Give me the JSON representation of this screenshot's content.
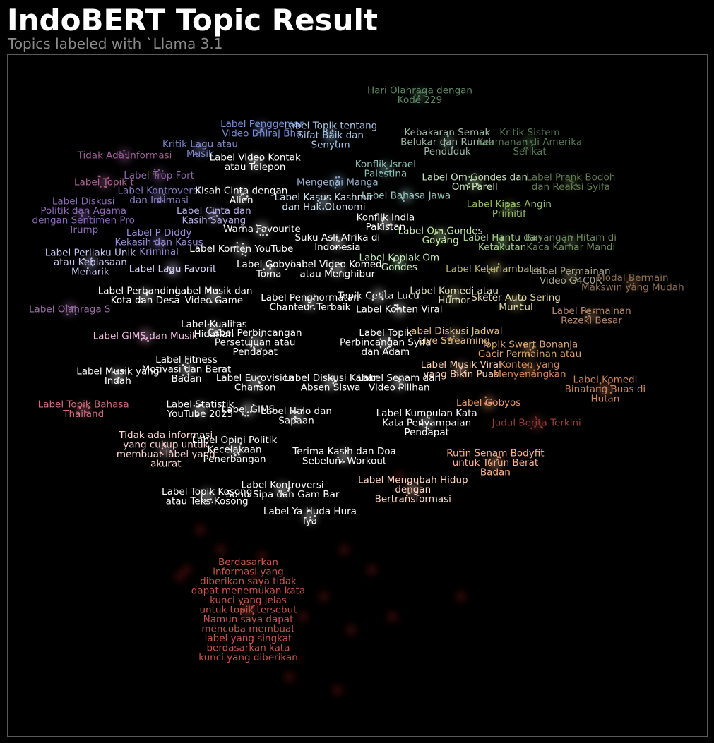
{
  "title": "IndoBERT Topic Result",
  "subtitle": "Topics labeled with `Llama 3.1",
  "chart_data": {
    "type": "scatter",
    "title": "IndoBERT Topic Result",
    "subtitle": "Topics labeled with `Llama 3.1",
    "xlabel": "",
    "ylabel": "",
    "axes_visible": false,
    "grid": false,
    "background": "#000000",
    "xlim": [
      0,
      100
    ],
    "ylim": [
      0,
      100
    ],
    "topics": [
      {
        "label": "Label Penggemar Video Dhiraj Bha",
        "x": 36,
        "y": 90,
        "color": "#7b8fd6"
      },
      {
        "label": "Label Topik tentang Sifat Baik dan Senyum",
        "x": 46,
        "y": 89,
        "color": "#a8c8e8"
      },
      {
        "label": "Hari Olahraga dengan Kode 229",
        "x": 59,
        "y": 95,
        "color": "#5e8a66"
      },
      {
        "label": "Kritik Lagu atau Musik",
        "x": 27,
        "y": 87,
        "color": "#7f86c9"
      },
      {
        "label": "Tidak Ada Informasi",
        "x": 16,
        "y": 86,
        "color": "#9d5f9b"
      },
      {
        "label": "Label Video Kontak atau Telepon",
        "x": 35,
        "y": 85,
        "color": "#ffffff"
      },
      {
        "label": "Kebakaran Semak Belukar dan Rumah Penduduk",
        "x": 63,
        "y": 88,
        "color": "#9cb8a8"
      },
      {
        "label": "Kritik Sistem Keamanan di Amerika Serikat",
        "x": 75,
        "y": 88,
        "color": "#567a56"
      },
      {
        "label": "Konflik Israel Palestina",
        "x": 54,
        "y": 84,
        "color": "#8fc1b7"
      },
      {
        "label": "Label Topik t",
        "x": 13,
        "y": 82,
        "color": "#b06696"
      },
      {
        "label": "Label Trop Fort",
        "x": 21,
        "y": 83,
        "color": "#8d65a8"
      },
      {
        "label": "Mengenai Manga",
        "x": 47,
        "y": 82,
        "color": "#9ab7d6"
      },
      {
        "label": "Label Om Gondes dan Om Parell",
        "x": 67,
        "y": 82,
        "color": "#c6e3b8"
      },
      {
        "label": "Label Prank Bodoh dan Reaksi Syifa",
        "x": 81,
        "y": 82,
        "color": "#627a50"
      },
      {
        "label": "Label Kontroversi dan Intimasi",
        "x": 21,
        "y": 80,
        "color": "#8a7ec3"
      },
      {
        "label": "Kisah Cinta dengan Alien",
        "x": 33,
        "y": 80,
        "color": "#ffffff"
      },
      {
        "label": "Label Kasus Kashmir dan Hak Otonomi",
        "x": 45,
        "y": 79,
        "color": "#d1e3f2"
      },
      {
        "label": "Label Bahasa Jawa",
        "x": 57,
        "y": 80,
        "color": "#9bc7c0"
      },
      {
        "label": "Label Diskusi Politik dan Agama dengan Sentimen Pro Trump",
        "x": 10,
        "y": 77,
        "color": "#8d6ab6"
      },
      {
        "label": "Label Kipas Angin Primitif",
        "x": 72,
        "y": 78,
        "color": "#99bd6a"
      },
      {
        "label": "Label Cinta dan Kasih Sayang",
        "x": 29,
        "y": 77,
        "color": "#b8b0e8"
      },
      {
        "label": "Warna Favourite",
        "x": 36,
        "y": 75,
        "color": "#ffffff"
      },
      {
        "label": "Konflik India Pakistan",
        "x": 54,
        "y": 76,
        "color": "#ffffff"
      },
      {
        "label": "Label P Diddy Kekasih dan Kasus Kriminal",
        "x": 21,
        "y": 73,
        "color": "#9b8fd9"
      },
      {
        "label": "Suku Asli Afrika di Indonesia",
        "x": 47,
        "y": 73,
        "color": "#ffffff"
      },
      {
        "label": "Label Om Gondes Goyang",
        "x": 62,
        "y": 74,
        "color": "#c7eba9"
      },
      {
        "label": "Label Hantu dan Ketakutan",
        "x": 71,
        "y": 73,
        "color": "#a3cc8a"
      },
      {
        "label": "Bayangan Hitam di Kaca Kamar Mandi",
        "x": 81,
        "y": 73,
        "color": "#6e8a5d"
      },
      {
        "label": "Label Konten YouTube",
        "x": 33,
        "y": 72,
        "color": "#ffffff"
      },
      {
        "label": "Label Perilaku Unik atau Kebiasaan Menarik",
        "x": 11,
        "y": 70,
        "color": "#c8c4f2"
      },
      {
        "label": "Label Koplak Om Gondes",
        "x": 56,
        "y": 70,
        "color": "#c9f0c3"
      },
      {
        "label": "Label Lagu Favorit",
        "x": 23,
        "y": 69,
        "color": "#d9d4f6"
      },
      {
        "label": "Label Gobyos Toma",
        "x": 37,
        "y": 69,
        "color": "#ffffff"
      },
      {
        "label": "Label Video Komedi atau Menghibur",
        "x": 47,
        "y": 69,
        "color": "#ffffff"
      },
      {
        "label": "Label Keterlambatan",
        "x": 70,
        "y": 69,
        "color": "#bdb87a"
      },
      {
        "label": "Label Permainan Video G4C0R",
        "x": 81,
        "y": 68,
        "color": "#a8a286"
      },
      {
        "label": "Modal Bermain Makswin yang Mudah",
        "x": 90,
        "y": 67,
        "color": "#8f6f52"
      },
      {
        "label": "Label Perbandingan Kota dan Desa",
        "x": 19,
        "y": 65,
        "color": "#ffffff"
      },
      {
        "label": "Label Musik dan Video Game",
        "x": 29,
        "y": 65,
        "color": "#ffffff"
      },
      {
        "label": "Label Komedi atau Humor",
        "x": 64,
        "y": 65,
        "color": "#e4e2b6"
      },
      {
        "label": "Sketer Auto Sering Muncul",
        "x": 73,
        "y": 64,
        "color": "#e1d9a3"
      },
      {
        "label": "Label Olahraga S",
        "x": 8,
        "y": 63,
        "color": "#9c6fa9"
      },
      {
        "label": "Label Penghormatan Chanteur Terbaik",
        "x": 43,
        "y": 64,
        "color": "#ffffff"
      },
      {
        "label": "Topik Cerita Lucu",
        "x": 53,
        "y": 65,
        "color": "#ffffff"
      },
      {
        "label": "Label Konten Viral",
        "x": 56,
        "y": 63,
        "color": "#ffffff"
      },
      {
        "label": "Label Permainan Rezeki Besar",
        "x": 84,
        "y": 62,
        "color": "#b9896a"
      },
      {
        "label": "Label Kualitas Hidarian",
        "x": 29,
        "y": 60,
        "color": "#ffffff"
      },
      {
        "label": "Label GIMS dan Musik",
        "x": 19,
        "y": 59,
        "color": "#f0b8e1"
      },
      {
        "label": "Label Perbincangan Persetujuan atau Pendapat",
        "x": 35,
        "y": 58,
        "color": "#ffffff"
      },
      {
        "label": "Label Topik Perbincangan Syifa dan Adam",
        "x": 54,
        "y": 58,
        "color": "#ffffff"
      },
      {
        "label": "Label Diskusi Jadwal Live Streaming",
        "x": 64,
        "y": 59,
        "color": "#e6bf83"
      },
      {
        "label": "Topik Swert Bonanja Gacir Permainan atau",
        "x": 75,
        "y": 57,
        "color": "#d9a46f"
      },
      {
        "label": "Label Fitness Motivasi dan Berat Badan",
        "x": 25,
        "y": 54,
        "color": "#ffffff"
      },
      {
        "label": "Label Musik yang Indah",
        "x": 15,
        "y": 53,
        "color": "#ffffff"
      },
      {
        "label": "Label Musik Viral yang Bikin Puas",
        "x": 65,
        "y": 54,
        "color": "#ffd0b0"
      },
      {
        "label": "Konten yang Menyenangkan",
        "x": 75,
        "y": 54,
        "color": "#d48b5c"
      },
      {
        "label": "Label Eurovision Chanson",
        "x": 35,
        "y": 52,
        "color": "#ffffff"
      },
      {
        "label": "Label Diskusi Kabar Absen Siswa",
        "x": 46,
        "y": 52,
        "color": "#ffffff"
      },
      {
        "label": "Label Senam dan Video Pilihan",
        "x": 56,
        "y": 52,
        "color": "#ffffff"
      },
      {
        "label": "Label Komedi Binatang Buas di Hutan",
        "x": 86,
        "y": 51,
        "color": "#d1875e"
      },
      {
        "label": "Label Gobyos",
        "x": 69,
        "y": 49,
        "color": "#e99d6e"
      },
      {
        "label": "Label Statistik YouTube 2025",
        "x": 27,
        "y": 48,
        "color": "#ffffff"
      },
      {
        "label": "Label GIMS",
        "x": 34,
        "y": 48,
        "color": "#ffffff"
      },
      {
        "label": "Label Topik Bahasa Thailand",
        "x": 10,
        "y": 48,
        "color": "#d26e81"
      },
      {
        "label": "Label Halo dan Sapaan",
        "x": 41,
        "y": 47,
        "color": "#ffffff"
      },
      {
        "label": "Label Kumpulan Kata Kata Penyampaian Pendapat",
        "x": 60,
        "y": 46,
        "color": "#ffffff"
      },
      {
        "label": "Judul Berita Terkini",
        "x": 76,
        "y": 46,
        "color": "#9c3c3c"
      },
      {
        "label": "Tidak ada informasi yang cukup untuk membuat label yang akurat",
        "x": 22,
        "y": 42,
        "color": "#ffd8d8"
      },
      {
        "label": "Label Opini Politik Kecelakaan Penerbangan",
        "x": 32,
        "y": 42,
        "color": "#ffffff"
      },
      {
        "label": "Terima Kasih dan Doa Sebelum Workout",
        "x": 48,
        "y": 41,
        "color": "#ffffff"
      },
      {
        "label": "Rutin Senam Bodyfit untuk Turun Berat Badan",
        "x": 70,
        "y": 40,
        "color": "#ffb48a"
      },
      {
        "label": "Label Kontroversi Sonu Sipa dan Gam Bar",
        "x": 39,
        "y": 36,
        "color": "#ffffff"
      },
      {
        "label": "Label Mengubah Hidup dengan Bertransformasi",
        "x": 58,
        "y": 36,
        "color": "#ffd4bf"
      },
      {
        "label": "Label Topik Kosong atau Teks Kosong",
        "x": 28,
        "y": 35,
        "color": "#ffffff"
      },
      {
        "label": "Label Ya Huda Hura Iya",
        "x": 43,
        "y": 32,
        "color": "#ffffff"
      },
      {
        "label": "Berdasarkan informasi yang diberikan saya tidak dapat menemukan kata kunci yang jelas untuk topik tersebut Namun saya dapat mencoba membuat label yang singkat berdasarkan kata kunci yang diberikan",
        "x": 34,
        "y": 18,
        "color": "#c7564c"
      }
    ]
  },
  "labels": [
    {
      "lines": [
        "Label Penggemar",
        "Video Dhiraj Bha"
      ],
      "color": "#7b8fd6"
    },
    {
      "lines": [
        "Label Topik tentang",
        "Sifat Baik dan",
        "Senyum"
      ],
      "color": "#a8c8e8"
    },
    {
      "lines": [
        "Hari Olahraga dengan",
        "Kode 229"
      ],
      "color": "#5e8a66"
    },
    {
      "lines": [
        "Kritik Lagu atau",
        "Musik"
      ],
      "color": "#7f86c9"
    },
    {
      "lines": [
        "Tidak Ada Informasi"
      ],
      "color": "#9d5f9b"
    },
    {
      "lines": [
        "Label Video Kontak",
        "atau Telepon"
      ],
      "color": "#ffffff"
    },
    {
      "lines": [
        "Kebakaran Semak",
        "Belukar dan Rumah",
        "Penduduk"
      ],
      "color": "#9cb8a8"
    },
    {
      "lines": [
        "Kritik Sistem",
        "Keamanan di Amerika",
        "Serikat"
      ],
      "color": "#567a56"
    },
    {
      "lines": [
        "Konflik Israel",
        "Palestina"
      ],
      "color": "#8fc1b7"
    },
    {
      "lines": [
        "Label Topik t"
      ],
      "color": "#b06696"
    },
    {
      "lines": [
        "Label Trop Fort"
      ],
      "color": "#8d65a8"
    },
    {
      "lines": [
        "Mengenai Manga"
      ],
      "color": "#9ab7d6"
    },
    {
      "lines": [
        "Label Om Gondes dan",
        "Om Parell"
      ],
      "color": "#c6e3b8"
    },
    {
      "lines": [
        "Label Prank Bodoh",
        "dan Reaksi Syifa"
      ],
      "color": "#627a50"
    },
    {
      "lines": [
        "Label Kontroversi",
        "dan Intimasi"
      ],
      "color": "#8a7ec3"
    },
    {
      "lines": [
        "Kisah Cinta dengan",
        "Alien"
      ],
      "color": "#ffffff"
    },
    {
      "lines": [
        "Label Kasus Kashmir",
        "dan Hak Otonomi"
      ],
      "color": "#d1e3f2"
    },
    {
      "lines": [
        "Label Bahasa Jawa"
      ],
      "color": "#9bc7c0"
    },
    {
      "lines": [
        "Label Diskusi",
        "Politik dan Agama",
        "dengan Sentimen Pro",
        "Trump"
      ],
      "color": "#8d6ab6"
    },
    {
      "lines": [
        "Label Kipas Angin",
        "Primitif"
      ],
      "color": "#99bd6a"
    },
    {
      "lines": [
        "Label Cinta dan",
        "Kasih Sayang"
      ],
      "color": "#b8b0e8"
    },
    {
      "lines": [
        "Warna Favourite"
      ],
      "color": "#ffffff"
    },
    {
      "lines": [
        "Konflik India",
        "Pakistan"
      ],
      "color": "#ffffff"
    },
    {
      "lines": [
        "Label P Diddy",
        "Kekasih dan Kasus",
        "Kriminal"
      ],
      "color": "#9b8fd9"
    },
    {
      "lines": [
        "Suku Asli Afrika di",
        "Indonesia"
      ],
      "color": "#ffffff"
    },
    {
      "lines": [
        "Label Om Gondes",
        "Goyang"
      ],
      "color": "#c7eba9"
    },
    {
      "lines": [
        "Label Hantu dan",
        "Ketakutan"
      ],
      "color": "#a3cc8a"
    },
    {
      "lines": [
        "Bayangan Hitam di",
        "Kaca Kamar Mandi"
      ],
      "color": "#6e8a5d"
    },
    {
      "lines": [
        "Label Konten YouTube"
      ],
      "color": "#ffffff"
    },
    {
      "lines": [
        "Label Perilaku Unik",
        "atau Kebiasaan",
        "Menarik"
      ],
      "color": "#c8c4f2"
    },
    {
      "lines": [
        "Label Koplak Om",
        "Gondes"
      ],
      "color": "#c9f0c3"
    },
    {
      "lines": [
        "Label Lagu Favorit"
      ],
      "color": "#d9d4f6"
    },
    {
      "lines": [
        "Label Gobyos",
        "Toma"
      ],
      "color": "#ffffff"
    },
    {
      "lines": [
        "Label Video Komedi",
        "atau Menghibur"
      ],
      "color": "#ffffff"
    },
    {
      "lines": [
        "Label Keterlambatan"
      ],
      "color": "#bdb87a"
    },
    {
      "lines": [
        "Label Permainan",
        "Video G4C0R"
      ],
      "color": "#a8a286"
    },
    {
      "lines": [
        "Modal Bermain",
        "Makswin yang Mudah"
      ],
      "color": "#8f6f52"
    },
    {
      "lines": [
        "Label Perbandingan",
        "Kota dan Desa"
      ],
      "color": "#ffffff"
    },
    {
      "lines": [
        "Label Musik dan",
        "Video Game"
      ],
      "color": "#ffffff"
    },
    {
      "lines": [
        "Label Komedi atau",
        "Humor"
      ],
      "color": "#e4e2b6"
    },
    {
      "lines": [
        "Sketer Auto Sering",
        "Muncul"
      ],
      "color": "#e1d9a3"
    },
    {
      "lines": [
        "Label Olahraga S"
      ],
      "color": "#9c6fa9"
    },
    {
      "lines": [
        "Label Penghormatan",
        "Chanteur Terbaik"
      ],
      "color": "#ffffff"
    },
    {
      "lines": [
        "Topik Cerita Lucu"
      ],
      "color": "#ffffff"
    },
    {
      "lines": [
        "Label Konten Viral"
      ],
      "color": "#ffffff"
    },
    {
      "lines": [
        "Label Permainan",
        "Rezeki Besar"
      ],
      "color": "#b9896a"
    },
    {
      "lines": [
        "Label Kualitas",
        "Hidarian"
      ],
      "color": "#ffffff"
    },
    {
      "lines": [
        "Label GIMS dan Musik"
      ],
      "color": "#f0b8e1"
    },
    {
      "lines": [
        "Label Perbincangan",
        "Persetujuan atau",
        "Pendapat"
      ],
      "color": "#ffffff"
    },
    {
      "lines": [
        "Label Topik",
        "Perbincangan Syifa",
        "dan Adam"
      ],
      "color": "#ffffff"
    },
    {
      "lines": [
        "Label Diskusi Jadwal",
        "Live Streaming"
      ],
      "color": "#e6bf83"
    },
    {
      "lines": [
        "Topik Swert Bonanja",
        "Gacir Permainan atau"
      ],
      "color": "#d9a46f"
    },
    {
      "lines": [
        "Label Fitness",
        "Motivasi dan Berat",
        "Badan"
      ],
      "color": "#ffffff"
    },
    {
      "lines": [
        "Label Musik yang",
        "Indah"
      ],
      "color": "#ffffff"
    },
    {
      "lines": [
        "Label Musik Viral",
        "yang Bikin Puas"
      ],
      "color": "#ffd0b0"
    },
    {
      "lines": [
        "Konten yang",
        "Menyenangkan"
      ],
      "color": "#d48b5c"
    },
    {
      "lines": [
        "Label Eurovision",
        "Chanson"
      ],
      "color": "#ffffff"
    },
    {
      "lines": [
        "Label Diskusi Kabar",
        "Absen Siswa"
      ],
      "color": "#ffffff"
    },
    {
      "lines": [
        "Label Senam dan",
        "Video Pilihan"
      ],
      "color": "#ffffff"
    },
    {
      "lines": [
        "Label Komedi",
        "Binatang Buas di",
        "Hutan"
      ],
      "color": "#d1875e"
    },
    {
      "lines": [
        "Label Gobyos"
      ],
      "color": "#e99d6e"
    },
    {
      "lines": [
        "Label Statistik",
        "YouTube 2025"
      ],
      "color": "#ffffff"
    },
    {
      "lines": [
        "Label GIMS"
      ],
      "color": "#ffffff"
    },
    {
      "lines": [
        "Label Topik Bahasa",
        "Thailand"
      ],
      "color": "#d26e81"
    },
    {
      "lines": [
        "Label Halo dan",
        "Sapaan"
      ],
      "color": "#ffffff"
    },
    {
      "lines": [
        "Label Kumpulan Kata",
        "Kata Penyampaian",
        "Pendapat"
      ],
      "color": "#ffffff"
    },
    {
      "lines": [
        "Judul Berita Terkini"
      ],
      "color": "#9c3c3c"
    },
    {
      "lines": [
        "Tidak ada informasi",
        "yang cukup untuk",
        "membuat label yang",
        "akurat"
      ],
      "color": "#ffd8d8"
    },
    {
      "lines": [
        "Label Opini Politik",
        "Kecelakaan",
        "Penerbangan"
      ],
      "color": "#ffffff"
    },
    {
      "lines": [
        "Terima Kasih dan Doa",
        "Sebelum Workout"
      ],
      "color": "#ffffff"
    },
    {
      "lines": [
        "Rutin Senam Bodyfit",
        "untuk Turun Berat",
        "Badan"
      ],
      "color": "#ffb48a"
    },
    {
      "lines": [
        "Label Kontroversi",
        "Sonu Sipa dan Gam Bar"
      ],
      "color": "#ffffff"
    },
    {
      "lines": [
        "Label Mengubah Hidup",
        "dengan",
        "Bertransformasi"
      ],
      "color": "#ffd4bf"
    },
    {
      "lines": [
        "Label Topik Kosong",
        "atau Teks Kosong"
      ],
      "color": "#ffffff"
    },
    {
      "lines": [
        "Label Ya Huda Hura",
        "Iya"
      ],
      "color": "#ffffff"
    },
    {
      "lines": [
        "Berdasarkan",
        "informasi yang",
        "diberikan saya tidak",
        "dapat menemukan kata",
        "kunci yang jelas",
        "untuk topik tersebut",
        "Namun saya dapat",
        "mencoba membuat",
        "label yang singkat",
        "berdasarkan kata",
        "kunci yang diberikan"
      ],
      "color": "#c7564c"
    }
  ]
}
